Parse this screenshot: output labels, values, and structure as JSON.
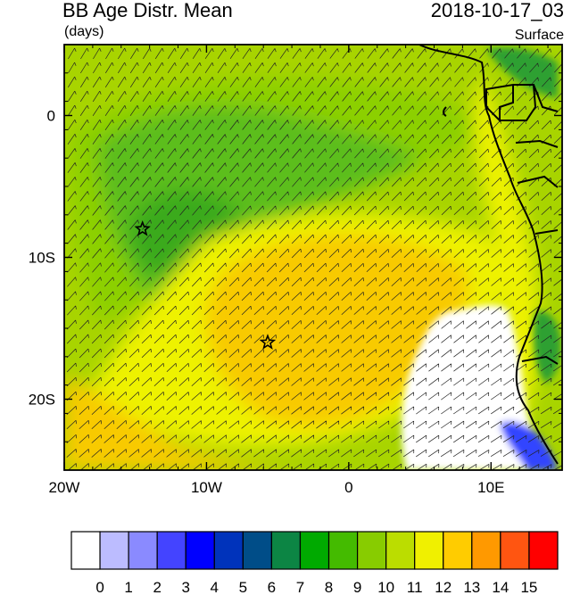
{
  "header": {
    "title": "BB Age Distr. Mean",
    "units": "(days)",
    "timestamp": "2018-10-17_03",
    "level": "Surface"
  },
  "map": {
    "lon_range": [
      -20,
      15
    ],
    "lat_range": [
      -25,
      5
    ],
    "x_ticks": [
      {
        "value": -20,
        "label": "20W"
      },
      {
        "value": -10,
        "label": "10W"
      },
      {
        "value": 0,
        "label": "0"
      },
      {
        "value": 10,
        "label": "10E"
      }
    ],
    "y_ticks": [
      {
        "value": 0,
        "label": "0"
      },
      {
        "value": -10,
        "label": "10S"
      },
      {
        "value": -20,
        "label": "20S"
      }
    ],
    "markers": [
      {
        "name": "star-marker-north",
        "lon": -14.5,
        "lat": -8.0
      },
      {
        "name": "star-marker-south",
        "lon": -5.7,
        "lat": -16.0
      }
    ],
    "field_colors": {
      "ocean_base": "#a8d400",
      "light_green": "#8cd000",
      "mid_green": "#5cbe1c",
      "dark_green": "#3aaa1a",
      "yellow": "#eef200",
      "gold": "#f8ca00",
      "white": "#ffffff",
      "blue": "#3344ff"
    }
  },
  "colorbar": {
    "labels": [
      "0",
      "1",
      "2",
      "3",
      "4",
      "5",
      "6",
      "7",
      "8",
      "9",
      "10",
      "11",
      "12",
      "13",
      "14",
      "15"
    ],
    "colors": [
      "#ffffff",
      "#bcbcff",
      "#8a8aff",
      "#4444ff",
      "#0000ff",
      "#0033bb",
      "#004d88",
      "#0c8544",
      "#00aa00",
      "#44bb00",
      "#88cc00",
      "#bbdd00",
      "#f0f000",
      "#ffcc00",
      "#ff9900",
      "#ff5511",
      "#ff0000"
    ]
  }
}
